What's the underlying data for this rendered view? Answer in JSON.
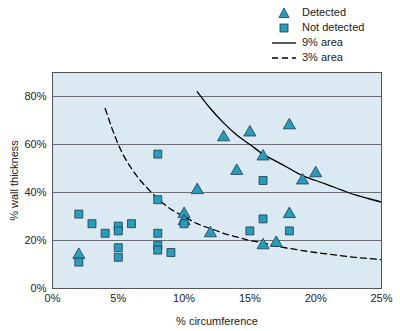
{
  "chart_data": {
    "type": "scatter",
    "x_label": "% circumference",
    "y_label": "% wall thickness",
    "xlim": [
      0,
      25
    ],
    "ylim": [
      0,
      90
    ],
    "xticks": [
      {
        "value": 0,
        "label": "0%"
      },
      {
        "value": 5,
        "label": "5%"
      },
      {
        "value": 10,
        "label": "10%"
      },
      {
        "value": 15,
        "label": "15%"
      },
      {
        "value": 20,
        "label": "20%"
      },
      {
        "value": 25,
        "label": "25%"
      }
    ],
    "yticks": [
      {
        "value": 0,
        "label": "0%"
      },
      {
        "value": 20,
        "label": "20%"
      },
      {
        "value": 40,
        "label": "40%"
      },
      {
        "value": 60,
        "label": "60%"
      },
      {
        "value": 80,
        "label": "80%"
      }
    ],
    "grid": true,
    "legend": "top-right",
    "series": [
      {
        "name": "Detected",
        "type": "scatter",
        "marker": "triangle",
        "color": "#2b9cb8",
        "x": [
          2,
          10,
          10,
          11,
          12,
          13,
          14,
          15,
          16,
          16,
          17,
          18,
          18,
          19,
          20
        ],
        "values": [
          14,
          31,
          28,
          41,
          23,
          63,
          49,
          65,
          55,
          18,
          19,
          68,
          31,
          45,
          48
        ]
      },
      {
        "name": "Not detected",
        "type": "scatter",
        "marker": "square",
        "color": "#2b9cb8",
        "x": [
          2,
          2,
          3,
          4,
          5,
          5,
          5,
          5,
          6,
          8,
          8,
          8,
          8,
          8,
          9,
          10,
          15,
          16,
          16,
          18
        ],
        "values": [
          31,
          11,
          27,
          23,
          26,
          24,
          17,
          13,
          27,
          56,
          37,
          23,
          18,
          16,
          15,
          27,
          24,
          45,
          29,
          24
        ]
      },
      {
        "name": "9% area",
        "type": "line",
        "line_style": "solid",
        "color": "#000000",
        "x": [
          11,
          12,
          13,
          14,
          15,
          16,
          17,
          18,
          19,
          20,
          21,
          22,
          23,
          24,
          25
        ],
        "values": [
          82,
          75,
          69,
          64,
          60,
          56,
          53,
          50,
          47,
          45,
          43,
          41,
          39,
          37.5,
          36
        ]
      },
      {
        "name": "3% area",
        "type": "line",
        "line_style": "dashed",
        "color": "#000000",
        "x": [
          4,
          5,
          6,
          7,
          8,
          9,
          10,
          11,
          12,
          13,
          14,
          15,
          16,
          17,
          18,
          19,
          20,
          21,
          22,
          23,
          24,
          25
        ],
        "values": [
          75,
          60,
          50,
          43,
          37.5,
          33,
          30,
          27,
          25,
          23,
          21.5,
          20,
          19,
          17.6,
          16.7,
          15.8,
          15,
          14.3,
          13.6,
          13,
          12.5,
          12
        ]
      }
    ]
  }
}
